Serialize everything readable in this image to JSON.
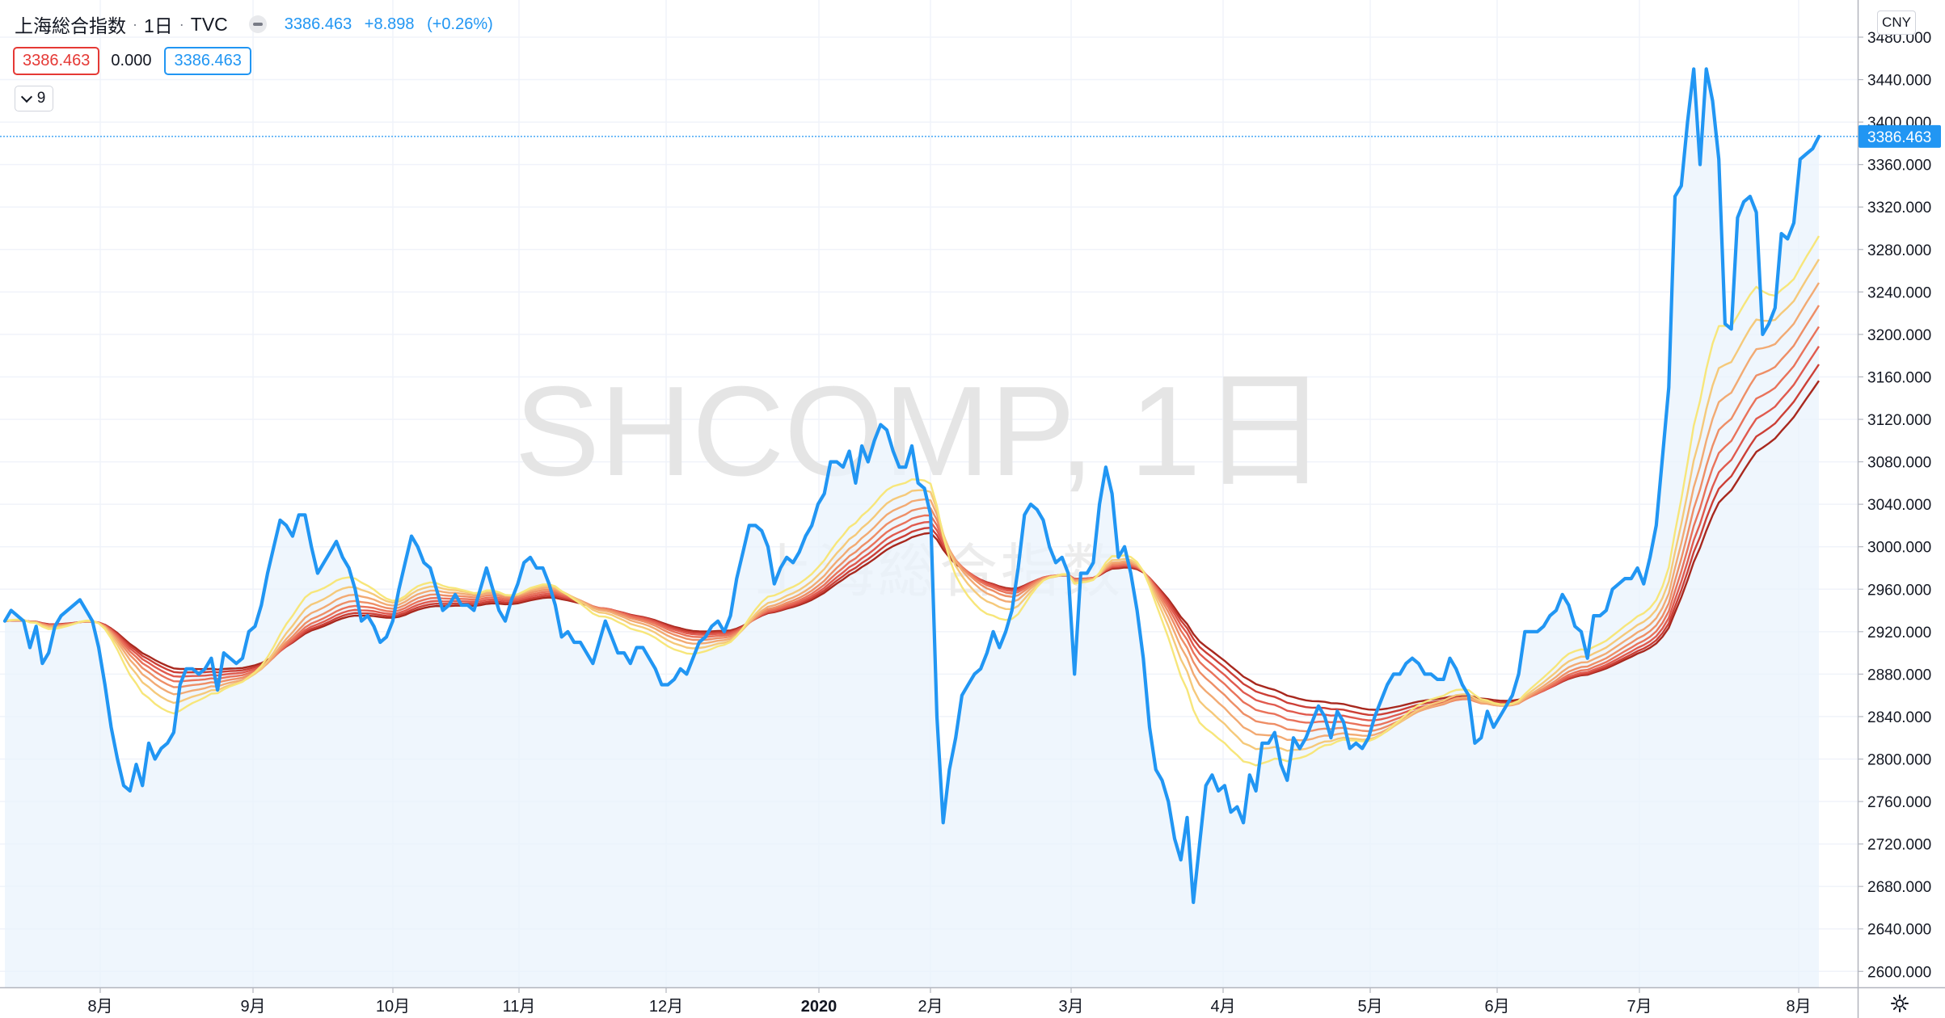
{
  "header": {
    "symbol": "上海総合指数",
    "interval": "1日",
    "exchange": "TVC",
    "separator": "·",
    "last": "3386.463",
    "change": "+8.898",
    "change_pct": "(+0.26%)"
  },
  "values_row": {
    "price_box": "3386.463",
    "indicator_value": "0.000",
    "ribbon_box": "3386.463"
  },
  "indicators_toggle": {
    "count": "9"
  },
  "currency_badge": "CNY",
  "icons": [
    "eye-hidden-icon",
    "chevron-down-icon",
    "gear-icon"
  ],
  "colors": {
    "price_line": "#2196f3",
    "area_fill": "#eaf3fc",
    "ribbon": [
      "#f7e67a",
      "#f5c97a",
      "#f2aa73",
      "#ee8e66",
      "#e9725a",
      "#e05a4e",
      "#cc3f36",
      "#a8281e"
    ],
    "last_price_label": "#2196f3"
  },
  "chart_data": {
    "type": "line",
    "watermark": "SHCOMP, 1日",
    "watermark_sub": "上海総合指数",
    "x_ticks": [
      "8月",
      "9月",
      "10月",
      "11月",
      "12月",
      "2020",
      "2月",
      "3月",
      "4月",
      "5月",
      "6月",
      "7月",
      "8月"
    ],
    "y_ticks": [
      "3480.000",
      "3440.000",
      "3400.000",
      "3360.000",
      "3320.000",
      "3280.000",
      "3240.000",
      "3200.000",
      "3160.000",
      "3120.000",
      "3080.000",
      "3040.000",
      "3000.000",
      "2960.000",
      "2920.000",
      "2880.000",
      "2840.000",
      "2800.000",
      "2760.000",
      "2720.000",
      "2680.000",
      "2640.000",
      "2600.000"
    ],
    "ylim": [
      2585,
      3515
    ],
    "last_value": 3386.463,
    "last_label": "3386.463",
    "series": [
      {
        "values": [
          2930,
          2940,
          2935,
          2930,
          2905,
          2925,
          2890,
          2900,
          2925,
          2935,
          2940,
          2945,
          2950,
          2940,
          2930,
          2905,
          2870,
          2830,
          2800,
          2775,
          2770,
          2795,
          2775,
          2815,
          2800,
          2810,
          2815,
          2825,
          2870,
          2885,
          2885,
          2880,
          2885,
          2895,
          2865,
          2900,
          2895,
          2890,
          2895,
          2920,
          2925,
          2945,
          2975,
          3000,
          3025,
          3020,
          3010,
          3030,
          3030,
          3000,
          2975,
          2985,
          2995,
          3005,
          2990,
          2980,
          2960,
          2930,
          2935,
          2925,
          2910,
          2915,
          2930,
          2960,
          2985,
          3010,
          3000,
          2985,
          2980,
          2960,
          2940,
          2945,
          2955,
          2945,
          2945,
          2940,
          2960,
          2980,
          2960,
          2940,
          2930,
          2950,
          2965,
          2985,
          2990,
          2980,
          2980,
          2965,
          2945,
          2915,
          2920,
          2910,
          2910,
          2900,
          2890,
          2910,
          2930,
          2915,
          2900,
          2900,
          2890,
          2905,
          2905,
          2895,
          2885,
          2870,
          2870,
          2875,
          2885,
          2880,
          2895,
          2910,
          2915,
          2925,
          2930,
          2920,
          2935,
          2970,
          2995,
          3020,
          3020,
          3015,
          3000,
          2965,
          2980,
          2990,
          2985,
          2995,
          3010,
          3020,
          3040,
          3050,
          3080,
          3080,
          3075,
          3090,
          3060,
          3095,
          3080,
          3100,
          3115,
          3110,
          3090,
          3075,
          3075,
          3095,
          3060,
          3055,
          3030,
          2840,
          2740,
          2790,
          2820,
          2860,
          2870,
          2880,
          2885,
          2900,
          2920,
          2905,
          2920,
          2940,
          2980,
          3030,
          3040,
          3035,
          3025,
          3000,
          2985,
          2990,
          2975,
          2880,
          2975,
          2975,
          2985,
          3040,
          3075,
          3050,
          2990,
          3000,
          2975,
          2940,
          2895,
          2830,
          2790,
          2780,
          2760,
          2725,
          2705,
          2745,
          2665,
          2720,
          2775,
          2785,
          2770,
          2775,
          2750,
          2755,
          2740,
          2785,
          2770,
          2815,
          2815,
          2825,
          2795,
          2780,
          2820,
          2810,
          2820,
          2835,
          2850,
          2840,
          2820,
          2845,
          2835,
          2810,
          2815,
          2810,
          2820,
          2840,
          2855,
          2870,
          2880,
          2880,
          2890,
          2895,
          2890,
          2880,
          2880,
          2875,
          2875,
          2895,
          2885,
          2870,
          2860,
          2815,
          2820,
          2845,
          2830,
          2840,
          2850,
          2860,
          2880,
          2920,
          2920,
          2920,
          2925,
          2935,
          2940,
          2955,
          2945,
          2925,
          2920,
          2895,
          2935,
          2935,
          2940,
          2960,
          2965,
          2970,
          2970,
          2980,
          2965,
          2990,
          3020,
          3085,
          3150,
          3330,
          3340,
          3400,
          3450,
          3360,
          3450,
          3420,
          3365,
          3210,
          3205,
          3310,
          3325,
          3330,
          3315,
          3200,
          3210,
          3225,
          3295,
          3290,
          3305,
          3365,
          3370,
          3375,
          3386.463
        ]
      }
    ],
    "ribbon_lengths": [
      20,
      25,
      30,
      35,
      40,
      45,
      50,
      55
    ]
  }
}
